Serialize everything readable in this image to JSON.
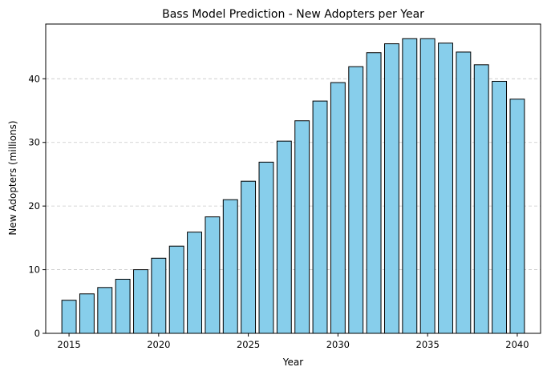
{
  "chart_data": {
    "type": "bar",
    "title": "Bass Model Prediction - New Adopters per Year",
    "xlabel": "Year",
    "ylabel": "New Adopters (millions)",
    "x": [
      2015,
      2016,
      2017,
      2018,
      2019,
      2020,
      2021,
      2022,
      2023,
      2024,
      2025,
      2026,
      2027,
      2028,
      2029,
      2030,
      2031,
      2032,
      2033,
      2034,
      2035,
      2036,
      2037,
      2038,
      2039,
      2040
    ],
    "values": [
      5.2,
      6.2,
      7.2,
      8.5,
      10.0,
      11.8,
      13.7,
      15.9,
      18.3,
      21.0,
      23.9,
      26.9,
      30.2,
      33.4,
      36.5,
      39.4,
      41.9,
      44.1,
      45.5,
      46.3,
      46.3,
      45.6,
      44.2,
      42.2,
      39.6,
      36.8
    ],
    "xlim": [
      2013.7,
      2041.3
    ],
    "ylim": [
      0,
      48.6
    ],
    "xticks": [
      2015,
      2020,
      2025,
      2030,
      2035,
      2040
    ],
    "yticks": [
      0,
      10,
      20,
      30,
      40
    ],
    "grid": "y dashed",
    "bar_color": "#87CEEB",
    "edge_color": "#000000",
    "grid_color": "#c8c8c8"
  }
}
